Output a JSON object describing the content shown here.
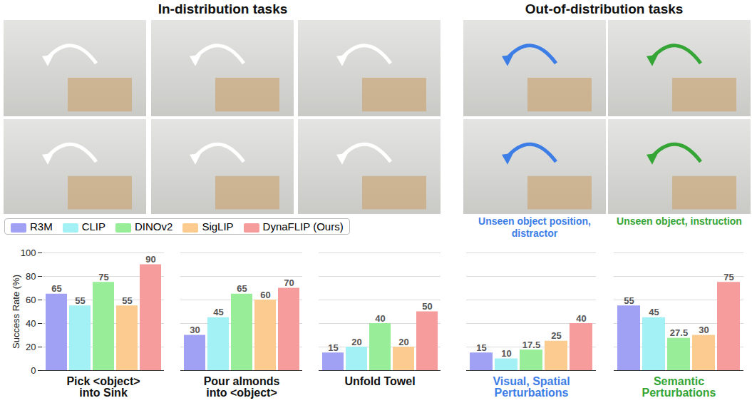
{
  "chart_data": [
    {
      "type": "bar",
      "title": "In-distribution tasks",
      "categories": [
        "Pick <object> into Sink",
        "Pour almonds into <object>",
        "Unfold Towel"
      ],
      "series": [
        {
          "name": "R3M",
          "color": "#a0a0f5",
          "values": [
            65,
            30,
            15
          ]
        },
        {
          "name": "CLIP",
          "color": "#a3f0f5",
          "values": [
            55,
            45,
            20
          ]
        },
        {
          "name": "DINOv2",
          "color": "#98ee98",
          "values": [
            75,
            65,
            40
          ]
        },
        {
          "name": "SigLIP",
          "color": "#fbcb90",
          "values": [
            55,
            60,
            20
          ]
        },
        {
          "name": "DynaFLIP (Ours)",
          "color": "#f79c9c",
          "values": [
            90,
            70,
            50
          ]
        }
      ],
      "ylabel": "Success Rate (%)",
      "ylim": [
        0,
        100
      ],
      "yticks": [
        0,
        20,
        40,
        60,
        80,
        100
      ],
      "grid": true,
      "data_labels": true,
      "legend": "top"
    },
    {
      "type": "bar",
      "title": "Out-of-distribution tasks",
      "annotations": [
        {
          "text": "Unseen object position, distractor",
          "color": "#3c7ee6"
        },
        {
          "text": "Unseen object, instruction",
          "color": "#35a535"
        }
      ],
      "categories": [
        "Visual, Spatial Perturbations",
        "Semantic Perturbations"
      ],
      "series": [
        {
          "name": "R3M",
          "color": "#a0a0f5",
          "values": [
            15,
            55
          ]
        },
        {
          "name": "CLIP",
          "color": "#a3f0f5",
          "values": [
            10,
            45
          ]
        },
        {
          "name": "DINOv2",
          "color": "#98ee98",
          "values": [
            17.5,
            27.5
          ]
        },
        {
          "name": "SigLIP",
          "color": "#fbcb90",
          "values": [
            25,
            30
          ]
        },
        {
          "name": "DynaFLIP (Ours)",
          "color": "#f79c9c",
          "values": [
            40,
            75
          ]
        }
      ],
      "ylim": [
        0,
        100
      ],
      "yticks": [
        0,
        20,
        40,
        60,
        80,
        100
      ],
      "grid": true,
      "data_labels": true,
      "tick_labels": "x"
    }
  ]
}
